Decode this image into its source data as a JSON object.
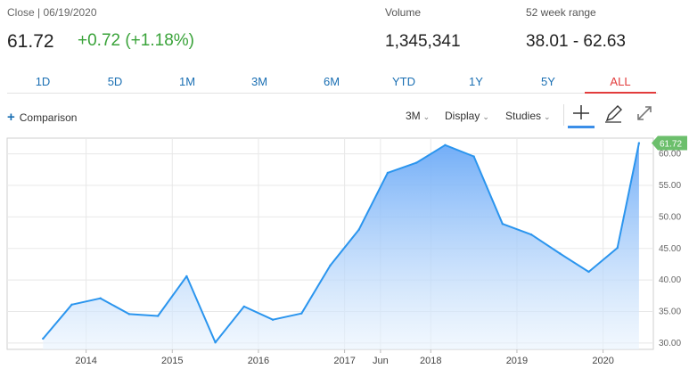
{
  "quote": {
    "close_label": "Close | 06/19/2020",
    "price": "61.72",
    "change": "+0.72 (+1.18%)",
    "volume_label": "Volume",
    "volume": "1,345,341",
    "range_label": "52 week range",
    "range": "38.01 - 62.63"
  },
  "tabs": [
    "1D",
    "5D",
    "1M",
    "3M",
    "6M",
    "YTD",
    "1Y",
    "5Y",
    "ALL"
  ],
  "active_tab": "ALL",
  "toolbar": {
    "comparison": "Comparison",
    "interval": "3M",
    "display": "Display",
    "studies": "Studies"
  },
  "colors": {
    "accent": "#1a6fb3",
    "positive": "#3aa33a",
    "active_tab": "#e23c3c",
    "line": "#2b95ee",
    "last_label_bg": "#6cbf6c"
  },
  "icons": [
    "plus-icon",
    "crosshair-icon",
    "pencil-icon",
    "expand-icon",
    "caret-down-icon"
  ],
  "chart_data": {
    "type": "area",
    "x": [
      "2013-07",
      "2013-11",
      "2014-03",
      "2014-07",
      "2014-11",
      "2015-03",
      "2015-07",
      "2015-11",
      "2016-03",
      "2016-07",
      "2016-11",
      "2017-03",
      "2017-07",
      "2017-11",
      "2018-03",
      "2018-07",
      "2018-11",
      "2019-03",
      "2019-07",
      "2019-11",
      "2020-03",
      "2020-06"
    ],
    "values": [
      30.7,
      36.1,
      37.1,
      34.6,
      34.3,
      40.6,
      30.1,
      35.8,
      33.7,
      34.7,
      42.3,
      48.0,
      57.0,
      58.6,
      61.4,
      59.6,
      48.9,
      47.2,
      44.2,
      41.3,
      45.1,
      61.72
    ],
    "y_ticks": [
      "30.00",
      "35.00",
      "40.00",
      "45.00",
      "50.00",
      "55.00",
      "60.00"
    ],
    "ylim": [
      29,
      62.5
    ],
    "x_tick_labels": [
      {
        "label": "2014",
        "x": "2014-01"
      },
      {
        "label": "2015",
        "x": "2015-01"
      },
      {
        "label": "2016",
        "x": "2016-01"
      },
      {
        "label": "2017",
        "x": "2017-01"
      },
      {
        "label": "Jun",
        "x": "2017-06"
      },
      {
        "label": "2018",
        "x": "2018-01"
      },
      {
        "label": "2019",
        "x": "2019-01"
      },
      {
        "label": "2020",
        "x": "2020-01"
      }
    ],
    "last_value_label": "61.72",
    "grid": true
  }
}
